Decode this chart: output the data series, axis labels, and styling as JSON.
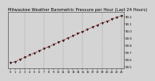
{
  "title": "Milwaukee Weather Barometric Pressure per Hour (Last 24 Hours)",
  "hours": [
    0,
    1,
    2,
    3,
    4,
    5,
    6,
    7,
    8,
    9,
    10,
    11,
    12,
    13,
    14,
    15,
    16,
    17,
    18,
    19,
    20,
    21,
    22,
    23
  ],
  "pressure": [
    29.55,
    29.57,
    29.6,
    29.63,
    29.66,
    29.69,
    29.72,
    29.75,
    29.78,
    29.81,
    29.84,
    29.87,
    29.9,
    29.93,
    29.96,
    29.99,
    30.02,
    30.05,
    30.08,
    30.11,
    30.13,
    30.16,
    30.19,
    30.21
  ],
  "ylim": [
    29.48,
    30.27
  ],
  "yticks": [
    29.5,
    29.6,
    29.7,
    29.8,
    29.9,
    30.0,
    30.1,
    30.2
  ],
  "ytick_labels": [
    "29.5",
    "29.6",
    "29.7",
    "29.8",
    "29.9",
    "30.0",
    "30.1",
    "30.2"
  ],
  "line_color": "#cc0000",
  "marker_color": "#222222",
  "bg_color": "#d4d4d4",
  "plot_bg_color": "#d4d4d4",
  "grid_color": "#888888",
  "title_color": "#000000",
  "title_fontsize": 3.8,
  "tick_fontsize": 2.8,
  "xlabel_fontsize": 2.5,
  "vgrid_positions": [
    3,
    7,
    11,
    15,
    19,
    23
  ]
}
